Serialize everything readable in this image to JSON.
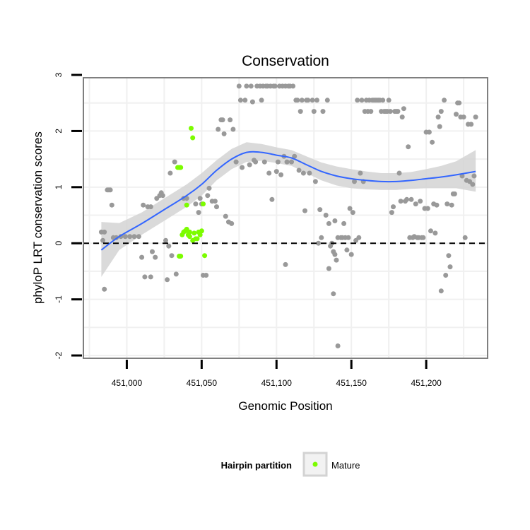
{
  "chart_data": {
    "type": "scatter",
    "title": "Conservation",
    "xlabel": "Genomic Position",
    "ylabel": "phyloP LRT conservation scores",
    "xlim": [
      450971,
      451241
    ],
    "ylim": [
      -2.05,
      2.95
    ],
    "x_ticks": [
      451000,
      451050,
      451100,
      451150,
      451200
    ],
    "x_tick_labels": [
      "451,000",
      "451,050",
      "451,100",
      "451,150",
      "451,200"
    ],
    "y_ticks": [
      3,
      2,
      1,
      0,
      -1,
      -2
    ],
    "y_tick_labels": [
      "3",
      "2",
      "1",
      "0",
      "-1",
      "-2"
    ],
    "grid": true,
    "reference_line": {
      "y": 0,
      "style": "dashed",
      "color": "#000000"
    },
    "colors": {
      "points": "#999999",
      "mature": "#7CFC00",
      "smooth_line": "#3366FF",
      "ribbon": "#d3d3d3",
      "panel_border": "#7f7f7f",
      "grid": "#f0f0f0"
    },
    "legend": {
      "title": "Hairpin partition",
      "position": "bottom",
      "entries": [
        {
          "label": "Mature",
          "color": "#7CFC00"
        }
      ]
    },
    "series": [
      {
        "color": "#999999",
        "points": [
          [
            450983,
            0.2
          ],
          [
            450984,
            0.05
          ],
          [
            450985,
            0.2
          ],
          [
            450985,
            -0.82
          ],
          [
            450987,
            0.95
          ],
          [
            450988,
            0.95
          ],
          [
            450989,
            0.95
          ],
          [
            450990,
            0.68
          ],
          [
            450991,
            0.1
          ],
          [
            450993,
            0.1
          ],
          [
            450996,
            0.12
          ],
          [
            450999,
            0.12
          ],
          [
            451002,
            0.12
          ],
          [
            451005,
            0.12
          ],
          [
            451008,
            0.12
          ],
          [
            451010,
            -0.25
          ],
          [
            451011,
            0.68
          ],
          [
            451012,
            -0.6
          ],
          [
            451014,
            0.65
          ],
          [
            451016,
            0.65
          ],
          [
            451016,
            -0.6
          ],
          [
            451017,
            -0.15
          ],
          [
            451019,
            -0.25
          ],
          [
            451020,
            0.8
          ],
          [
            451022,
            0.85
          ],
          [
            451023,
            0.9
          ],
          [
            451024,
            0.85
          ],
          [
            451026,
            0.05
          ],
          [
            451027,
            -0.65
          ],
          [
            451028,
            -0.05
          ],
          [
            451029,
            1.25
          ],
          [
            451030,
            -0.22
          ],
          [
            451032,
            1.45
          ],
          [
            451033,
            -0.55
          ],
          [
            451038,
            0.8
          ],
          [
            451040,
            0.8
          ],
          [
            451046,
            0.7
          ],
          [
            451048,
            0.55
          ],
          [
            451049,
            0.8
          ],
          [
            451050,
            0.7
          ],
          [
            451051,
            -0.57
          ],
          [
            451053,
            -0.57
          ],
          [
            451054,
            0.85
          ],
          [
            451055,
            0.98
          ],
          [
            451057,
            0.75
          ],
          [
            451059,
            0.75
          ],
          [
            451060,
            0.65
          ],
          [
            451061,
            2.03
          ],
          [
            451063,
            2.2
          ],
          [
            451064,
            2.2
          ],
          [
            451065,
            1.95
          ],
          [
            451066,
            0.48
          ],
          [
            451068,
            0.38
          ],
          [
            451069,
            2.2
          ],
          [
            451070,
            0.35
          ],
          [
            451071,
            2.03
          ],
          [
            451073,
            1.45
          ],
          [
            451075,
            2.8
          ],
          [
            451076,
            2.55
          ],
          [
            451077,
            1.35
          ],
          [
            451079,
            2.55
          ],
          [
            451080,
            2.8
          ],
          [
            451082,
            1.4
          ],
          [
            451083,
            2.8
          ],
          [
            451084,
            2.52
          ],
          [
            451085,
            1.48
          ],
          [
            451086,
            1.45
          ],
          [
            451087,
            2.8
          ],
          [
            451089,
            2.8
          ],
          [
            451090,
            2.55
          ],
          [
            451091,
            2.8
          ],
          [
            451092,
            1.45
          ],
          [
            451093,
            2.8
          ],
          [
            451094,
            2.8
          ],
          [
            451095,
            1.25
          ],
          [
            451096,
            2.8
          ],
          [
            451097,
            0.78
          ],
          [
            451098,
            2.8
          ],
          [
            451099,
            2.8
          ],
          [
            451100,
            1.28
          ],
          [
            451101,
            1.45
          ],
          [
            451102,
            2.8
          ],
          [
            451103,
            1.22
          ],
          [
            451104,
            2.8
          ],
          [
            451105,
            1.55
          ],
          [
            451106,
            2.8
          ],
          [
            451106,
            -0.38
          ],
          [
            451107,
            1.45
          ],
          [
            451108,
            2.8
          ],
          [
            451109,
            2.8
          ],
          [
            451110,
            1.45
          ],
          [
            451111,
            2.8
          ],
          [
            451112,
            1.55
          ],
          [
            451113,
            2.55
          ],
          [
            451114,
            2.55
          ],
          [
            451115,
            1.3
          ],
          [
            451116,
            2.35
          ],
          [
            451117,
            2.55
          ],
          [
            451118,
            1.25
          ],
          [
            451119,
            0.58
          ],
          [
            451120,
            2.55
          ],
          [
            451121,
            2.55
          ],
          [
            451122,
            1.25
          ],
          [
            451124,
            2.55
          ],
          [
            451125,
            2.35
          ],
          [
            451126,
            1.1
          ],
          [
            451127,
            2.55
          ],
          [
            451128,
            0.0
          ],
          [
            451129,
            0.6
          ],
          [
            451130,
            0.1
          ],
          [
            451131,
            2.35
          ],
          [
            451133,
            0.5
          ],
          [
            451134,
            2.55
          ],
          [
            451135,
            0.35
          ],
          [
            451135,
            -0.45
          ],
          [
            451136,
            -0.05
          ],
          [
            451137,
            0.0
          ],
          [
            451138,
            -0.9
          ],
          [
            451138,
            -0.15
          ],
          [
            451139,
            0.4
          ],
          [
            451139,
            -0.2
          ],
          [
            451140,
            -0.3
          ],
          [
            451141,
            0.1
          ],
          [
            451141,
            -1.83
          ],
          [
            451143,
            0.1
          ],
          [
            451144,
            0.1
          ],
          [
            451145,
            0.35
          ],
          [
            451146,
            0.1
          ],
          [
            451147,
            -0.12
          ],
          [
            451148,
            0.1
          ],
          [
            451149,
            0.62
          ],
          [
            451150,
            -0.2
          ],
          [
            451151,
            0.55
          ],
          [
            451152,
            1.1
          ],
          [
            451153,
            0.05
          ],
          [
            451154,
            2.55
          ],
          [
            451155,
            0.1
          ],
          [
            451156,
            1.25
          ],
          [
            451157,
            2.55
          ],
          [
            451158,
            1.1
          ],
          [
            451159,
            2.35
          ],
          [
            451160,
            2.55
          ],
          [
            451161,
            2.35
          ],
          [
            451162,
            2.55
          ],
          [
            451163,
            2.35
          ],
          [
            451164,
            2.55
          ],
          [
            451165,
            2.55
          ],
          [
            451166,
            2.55
          ],
          [
            451167,
            2.55
          ],
          [
            451168,
            2.55
          ],
          [
            451169,
            2.55
          ],
          [
            451170,
            2.35
          ],
          [
            451171,
            2.55
          ],
          [
            451172,
            2.35
          ],
          [
            451173,
            2.35
          ],
          [
            451174,
            2.35
          ],
          [
            451175,
            2.55
          ],
          [
            451176,
            2.35
          ],
          [
            451177,
            0.55
          ],
          [
            451178,
            0.65
          ],
          [
            451179,
            2.35
          ],
          [
            451180,
            2.35
          ],
          [
            451181,
            2.35
          ],
          [
            451182,
            1.25
          ],
          [
            451183,
            0.75
          ],
          [
            451184,
            2.25
          ],
          [
            451185,
            2.4
          ],
          [
            451186,
            0.75
          ],
          [
            451187,
            0.78
          ],
          [
            451188,
            1.72
          ],
          [
            451189,
            0.1
          ],
          [
            451190,
            0.78
          ],
          [
            451191,
            0.1
          ],
          [
            451192,
            0.12
          ],
          [
            451193,
            0.7
          ],
          [
            451194,
            0.1
          ],
          [
            451195,
            0.1
          ],
          [
            451196,
            0.75
          ],
          [
            451197,
            0.1
          ],
          [
            451198,
            0.1
          ],
          [
            451199,
            0.62
          ],
          [
            451200,
            1.98
          ],
          [
            451201,
            0.62
          ],
          [
            451202,
            1.98
          ],
          [
            451203,
            0.22
          ],
          [
            451204,
            1.8
          ],
          [
            451205,
            0.7
          ],
          [
            451206,
            0.18
          ],
          [
            451207,
            0.68
          ],
          [
            451208,
            2.25
          ],
          [
            451209,
            2.08
          ],
          [
            451210,
            -0.85
          ],
          [
            451210,
            2.35
          ],
          [
            451212,
            2.55
          ],
          [
            451213,
            -0.57
          ],
          [
            451214,
            0.7
          ],
          [
            451215,
            -0.22
          ],
          [
            451216,
            -0.42
          ],
          [
            451217,
            0.68
          ],
          [
            451218,
            0.88
          ],
          [
            451219,
            0.88
          ],
          [
            451220,
            2.3
          ],
          [
            451221,
            2.5
          ],
          [
            451222,
            2.5
          ],
          [
            451223,
            2.25
          ],
          [
            451224,
            1.2
          ],
          [
            451225,
            2.25
          ],
          [
            451226,
            0.1
          ],
          [
            451227,
            1.12
          ],
          [
            451228,
            2.12
          ],
          [
            451229,
            1.1
          ],
          [
            451230,
            2.12
          ],
          [
            451231,
            1.05
          ],
          [
            451232,
            1.2
          ],
          [
            451233,
            2.25
          ]
        ]
      },
      {
        "name": "Mature",
        "color": "#7CFC00",
        "points": [
          [
            451034,
            1.35
          ],
          [
            451035,
            1.35
          ],
          [
            451036,
            1.35
          ],
          [
            451035,
            -0.23
          ],
          [
            451036,
            -0.23
          ],
          [
            451037,
            0.15
          ],
          [
            451038,
            0.2
          ],
          [
            451039,
            0.22
          ],
          [
            451040,
            0.25
          ],
          [
            451040,
            0.68
          ],
          [
            451041,
            0.15
          ],
          [
            451042,
            0.12
          ],
          [
            451043,
            2.05
          ],
          [
            451044,
            1.88
          ],
          [
            451044,
            0.05
          ],
          [
            451045,
            0.18
          ],
          [
            451046,
            0.08
          ],
          [
            451047,
            0.08
          ],
          [
            451048,
            0.2
          ],
          [
            451049,
            0.15
          ],
          [
            451050,
            0.22
          ],
          [
            451051,
            0.7
          ],
          [
            451052,
            -0.22
          ],
          [
            451042,
            0.2
          ]
        ]
      }
    ],
    "smooth": {
      "x": [
        450983,
        450995,
        451010,
        451025,
        451040,
        451050,
        451060,
        451070,
        451080,
        451090,
        451100,
        451110,
        451120,
        451130,
        451140,
        451150,
        451160,
        451170,
        451180,
        451190,
        451200,
        451210,
        451220,
        451233
      ],
      "y": [
        -0.12,
        0.12,
        0.35,
        0.6,
        0.85,
        1.05,
        1.3,
        1.5,
        1.62,
        1.62,
        1.57,
        1.52,
        1.4,
        1.28,
        1.2,
        1.15,
        1.12,
        1.1,
        1.1,
        1.12,
        1.15,
        1.18,
        1.22,
        1.28
      ],
      "lo": [
        -0.6,
        -0.12,
        0.15,
        0.4,
        0.65,
        0.85,
        1.12,
        1.32,
        1.45,
        1.47,
        1.43,
        1.38,
        1.25,
        1.12,
        1.03,
        0.98,
        0.96,
        0.95,
        0.95,
        0.97,
        0.98,
        0.98,
        0.98,
        0.92
      ],
      "hi": [
        0.38,
        0.36,
        0.55,
        0.8,
        1.05,
        1.25,
        1.48,
        1.68,
        1.8,
        1.77,
        1.71,
        1.66,
        1.55,
        1.44,
        1.37,
        1.32,
        1.28,
        1.25,
        1.25,
        1.27,
        1.32,
        1.38,
        1.46,
        1.66
      ]
    }
  }
}
